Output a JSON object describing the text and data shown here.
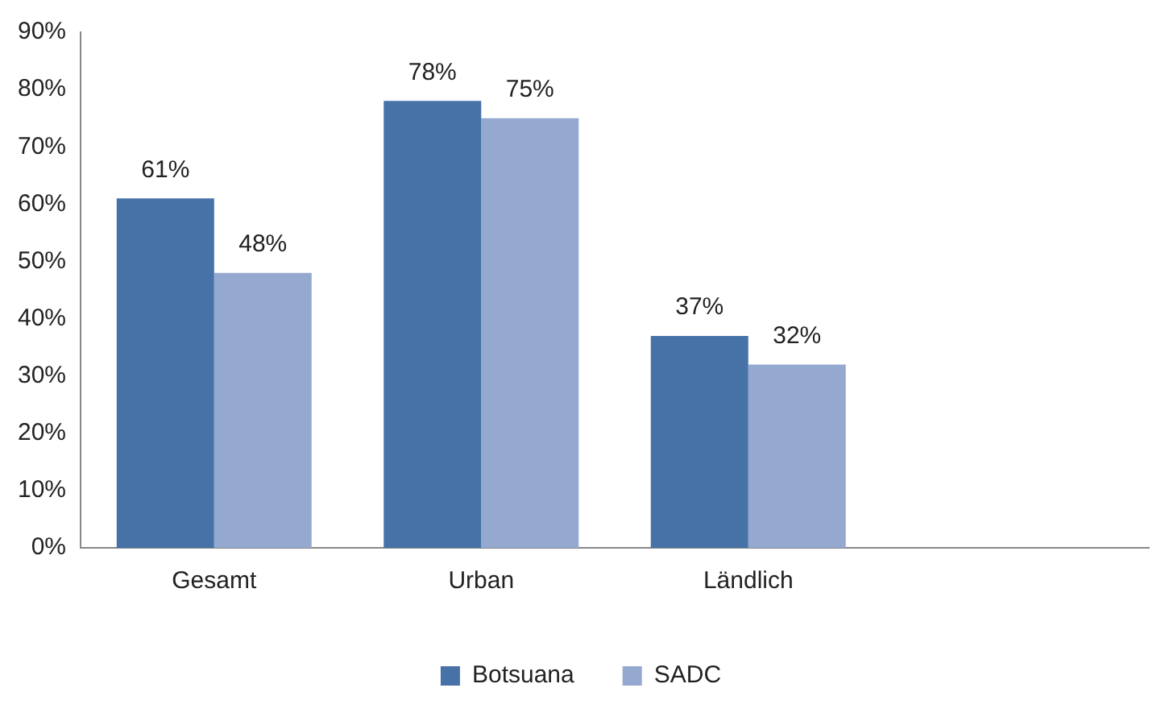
{
  "chart_data": {
    "type": "bar",
    "categories": [
      "Gesamt",
      "Urban",
      "Ländlich",
      null
    ],
    "series": [
      {
        "name": "Botsuana",
        "color": "#4672a8",
        "values": [
          61,
          78,
          37,
          null
        ],
        "value_labels": [
          "61%",
          "78%",
          "37%",
          null
        ]
      },
      {
        "name": "SADC",
        "color": "#95a9d0",
        "values": [
          48,
          75,
          32,
          null
        ],
        "value_labels": [
          "48%",
          "75%",
          "32%",
          null
        ]
      }
    ],
    "ylim": [
      0,
      90
    ],
    "yticks": [
      {
        "value": 0,
        "label": "0%"
      },
      {
        "value": 10,
        "label": "10%"
      },
      {
        "value": 20,
        "label": "20%"
      },
      {
        "value": 30,
        "label": "30%"
      },
      {
        "value": 40,
        "label": "40%"
      },
      {
        "value": 50,
        "label": "50%"
      },
      {
        "value": 60,
        "label": "60%"
      },
      {
        "value": 70,
        "label": "70%"
      },
      {
        "value": 80,
        "label": "80%"
      },
      {
        "value": 90,
        "label": "90%"
      }
    ],
    "grid": false,
    "legend": "bottom"
  }
}
